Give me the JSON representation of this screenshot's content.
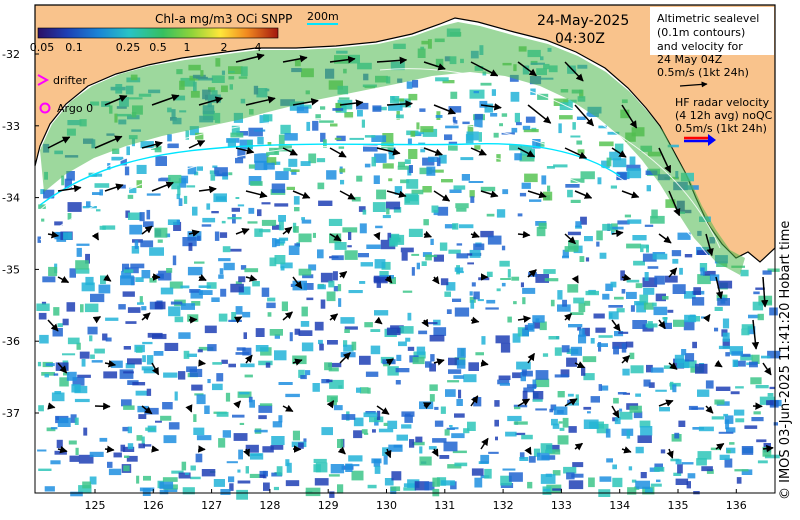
{
  "colorbar": {
    "title": "Chl-a mg/m3 OCi SNPP",
    "ticks": [
      "0.05",
      "0.1",
      "0.25",
      "0.5",
      "1",
      "2",
      "4"
    ]
  },
  "scale_label": "200m",
  "date": "24-May-2025",
  "time": "04:30Z",
  "altimetry_note": [
    "Altimetric sealevel",
    "(0.1m contours)",
    "and velocity for",
    "24 May 04Z",
    "0.5m/s (1kt 24h)"
  ],
  "hf_note": [
    "HF radar velocity",
    "(4 12h avg) noQC",
    "0.5m/s (1kt 24h)"
  ],
  "legend": {
    "drifter": "drifter",
    "argo": "Argo 0"
  },
  "lat_labels": [
    "-32",
    "-33",
    "-34",
    "-35",
    "-36",
    "-37"
  ],
  "lon_labels": [
    "125",
    "126",
    "127",
    "128",
    "129",
    "130",
    "131",
    "132",
    "133",
    "134",
    "135",
    "136"
  ],
  "credit": "© IMOS 03-Jun-2025 11:41:20 Hobart time",
  "colors": {
    "land": "#f9c38c",
    "ocean_blank": "#ffffff",
    "coast": "#000000",
    "drifter": "#ff00ff",
    "argo": "#ff00ff",
    "hf_arrow_red": "#ff0000",
    "hf_arrow_blue": "#0000ff"
  }
}
